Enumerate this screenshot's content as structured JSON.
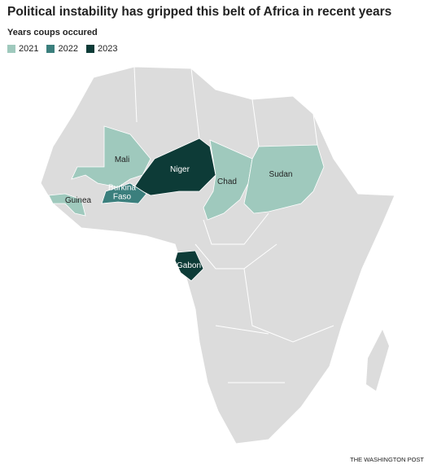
{
  "title": "Political instability has gripped this belt of Africa in recent years",
  "legend": {
    "title": "Years coups occured",
    "entries": [
      {
        "label": "2021",
        "color": "#9fc9bd"
      },
      {
        "label": "2022",
        "color": "#3b7f7d"
      },
      {
        "label": "2023",
        "color": "#0d3b37"
      }
    ]
  },
  "regions": [
    {
      "label": [
        "Mali"
      ],
      "color": "#9fc9bd",
      "text_color": "#222222"
    },
    {
      "label": [
        "Niger"
      ],
      "color": "#0d3b37",
      "text_color": "#ffffff"
    },
    {
      "label": [
        "Chad"
      ],
      "color": "#9fc9bd",
      "text_color": "#222222"
    },
    {
      "label": [
        "Sudan"
      ],
      "color": "#9fc9bd",
      "text_color": "#222222"
    },
    {
      "label": [
        "Guinea"
      ],
      "color": "#9fc9bd",
      "text_color": "#222222"
    },
    {
      "label": [
        "Burkina",
        "Faso"
      ],
      "color": "#3b7f7d",
      "text_color": "#ffffff"
    },
    {
      "label": [
        "Gabon"
      ],
      "color": "#0d3b37",
      "text_color": "#ffffff"
    }
  ],
  "source": "THE WASHINGTON POST"
}
